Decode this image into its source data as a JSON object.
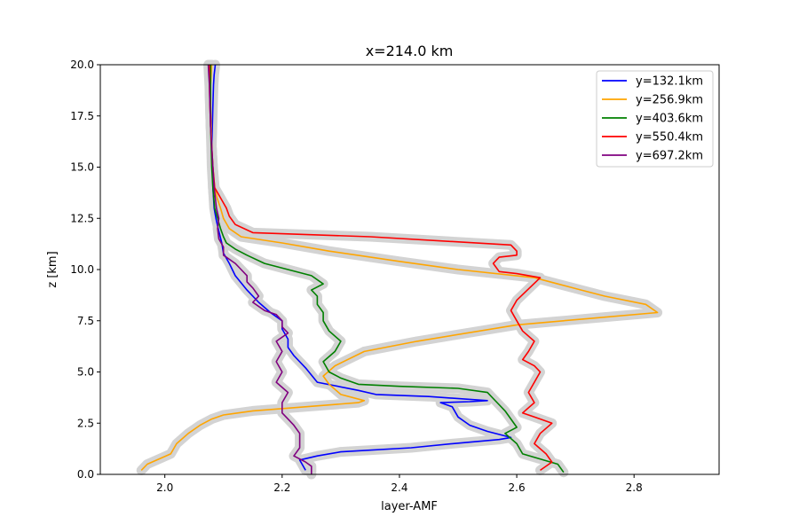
{
  "chart_data": {
    "type": "line",
    "title": "x=214.0 km",
    "xlabel": "layer-AMF",
    "ylabel": "z [km]",
    "xlim": [
      1.89,
      2.945
    ],
    "ylim": [
      0,
      20
    ],
    "xticks": [
      "2.0",
      "2.2",
      "2.4",
      "2.6",
      "2.8"
    ],
    "xtick_values": [
      2.0,
      2.2,
      2.4,
      2.6,
      2.8
    ],
    "yticks": [
      "0.0",
      "2.5",
      "5.0",
      "7.5",
      "10.0",
      "12.5",
      "15.0",
      "17.5",
      "20.0"
    ],
    "ytick_values": [
      0,
      2.5,
      5.0,
      7.5,
      10.0,
      12.5,
      15.0,
      17.5,
      20.0
    ],
    "grid": false,
    "legend_position": "top-right",
    "uncertainty_band_color": "#d3d3d3",
    "series": [
      {
        "name": "y=132.1km",
        "color": "#0000ff",
        "x": [
          2.24,
          2.23,
          2.26,
          2.3,
          2.42,
          2.49,
          2.57,
          2.59,
          2.55,
          2.52,
          2.5,
          2.49,
          2.47,
          2.52,
          2.55,
          2.45,
          2.36,
          2.33,
          2.26,
          2.24,
          2.22,
          2.21,
          2.21,
          2.2,
          2.2,
          2.18,
          2.16,
          2.14,
          2.12,
          2.11,
          2.1,
          2.097,
          2.091,
          2.087,
          2.084,
          2.082,
          2.081,
          2.08,
          2.081,
          2.082,
          2.083,
          2.084,
          2.086
        ],
        "y": [
          0.2,
          0.7,
          0.9,
          1.1,
          1.3,
          1.5,
          1.7,
          1.8,
          2.1,
          2.4,
          2.8,
          3.3,
          3.5,
          3.55,
          3.6,
          3.8,
          3.9,
          4.1,
          4.5,
          5.2,
          5.8,
          6.2,
          6.6,
          7.1,
          7.5,
          7.9,
          8.4,
          9.0,
          9.7,
          10.3,
          10.8,
          11.3,
          12.0,
          12.5,
          13.0,
          14.0,
          15.0,
          16.0,
          17.0,
          18.0,
          19.0,
          19.5,
          20.0
        ]
      },
      {
        "name": "y=256.9km",
        "color": "#ffa500",
        "x": [
          1.96,
          1.97,
          2.01,
          2.02,
          2.04,
          2.06,
          2.08,
          2.1,
          2.15,
          2.33,
          2.34,
          2.3,
          2.28,
          2.27,
          2.29,
          2.34,
          2.43,
          2.6,
          2.72,
          2.84,
          2.82,
          2.75,
          2.71,
          2.67,
          2.63,
          2.5,
          2.4,
          2.28,
          2.2,
          2.13,
          2.11,
          2.1,
          2.095,
          2.089,
          2.085,
          2.082,
          2.08,
          2.079,
          2.078,
          2.078,
          2.079,
          2.08
        ],
        "y": [
          0.2,
          0.5,
          1.0,
          1.5,
          2.0,
          2.4,
          2.7,
          2.9,
          3.1,
          3.5,
          3.6,
          3.9,
          4.4,
          4.8,
          5.3,
          6.0,
          6.5,
          7.3,
          7.6,
          7.9,
          8.3,
          8.7,
          9.0,
          9.3,
          9.6,
          10.0,
          10.4,
          10.9,
          11.3,
          11.6,
          12.0,
          12.5,
          13.0,
          13.5,
          14.0,
          15.0,
          16.0,
          17.0,
          18.0,
          19.0,
          19.5,
          20.0
        ]
      },
      {
        "name": "y=403.6km",
        "color": "#008000",
        "x": [
          2.68,
          2.67,
          2.61,
          2.6,
          2.58,
          2.6,
          2.59,
          2.58,
          2.57,
          2.56,
          2.55,
          2.5,
          2.4,
          2.33,
          2.3,
          2.28,
          2.27,
          2.29,
          2.3,
          2.28,
          2.27,
          2.27,
          2.26,
          2.26,
          2.25,
          2.27,
          2.25,
          2.21,
          2.17,
          2.14,
          2.12,
          2.105,
          2.1,
          2.095,
          2.09,
          2.085,
          2.082,
          2.08,
          2.079,
          2.078,
          2.078,
          2.078,
          2.078
        ],
        "y": [
          0.1,
          0.5,
          1.0,
          1.5,
          2.0,
          2.3,
          2.7,
          3.1,
          3.4,
          3.7,
          4.0,
          4.2,
          4.3,
          4.4,
          4.7,
          5.0,
          5.5,
          6.0,
          6.5,
          7.0,
          7.5,
          7.9,
          8.3,
          8.7,
          9.0,
          9.3,
          9.7,
          10.0,
          10.3,
          10.7,
          11.0,
          11.3,
          11.6,
          12.0,
          12.5,
          13.0,
          14.0,
          15.0,
          16.0,
          17.0,
          18.0,
          19.0,
          20.0
        ]
      },
      {
        "name": "y=550.4km",
        "color": "#ff0000",
        "x": [
          2.64,
          2.66,
          2.65,
          2.63,
          2.64,
          2.66,
          2.63,
          2.61,
          2.63,
          2.62,
          2.63,
          2.64,
          2.63,
          2.61,
          2.62,
          2.63,
          2.61,
          2.6,
          2.59,
          2.6,
          2.64,
          2.6,
          2.57,
          2.56,
          2.57,
          2.6,
          2.6,
          2.59,
          2.35,
          2.15,
          2.12,
          2.11,
          2.105,
          2.095,
          2.085,
          2.082,
          2.08,
          2.078,
          2.077,
          2.076,
          2.076,
          2.076
        ],
        "y": [
          0.2,
          0.6,
          1.0,
          1.5,
          2.0,
          2.5,
          2.8,
          3.0,
          3.5,
          4.0,
          4.5,
          5.0,
          5.3,
          5.6,
          6.0,
          6.5,
          7.0,
          7.5,
          8.0,
          8.5,
          9.6,
          9.8,
          9.9,
          10.3,
          10.6,
          10.7,
          10.9,
          11.2,
          11.6,
          11.8,
          12.2,
          12.6,
          13.0,
          13.5,
          14.0,
          15.0,
          16.0,
          17.0,
          18.0,
          19.0,
          19.5,
          20.0
        ]
      },
      {
        "name": "y=697.2km",
        "color": "#800080",
        "x": [
          2.25,
          2.25,
          2.24,
          2.22,
          2.23,
          2.23,
          2.22,
          2.21,
          2.2,
          2.2,
          2.21,
          2.19,
          2.2,
          2.19,
          2.2,
          2.19,
          2.21,
          2.2,
          2.2,
          2.19,
          2.17,
          2.15,
          2.16,
          2.15,
          2.14,
          2.14,
          2.13,
          2.12,
          2.1,
          2.1,
          2.092,
          2.09,
          2.092,
          2.088,
          2.084,
          2.082,
          2.08,
          2.078,
          2.077,
          2.076,
          2.075,
          2.074
        ],
        "y": [
          0.0,
          0.4,
          0.6,
          0.9,
          1.3,
          2.0,
          2.4,
          2.7,
          3.0,
          3.5,
          4.0,
          4.5,
          5.0,
          5.5,
          6.0,
          6.5,
          6.9,
          7.2,
          7.5,
          7.8,
          8.0,
          8.4,
          8.7,
          9.1,
          9.4,
          9.7,
          10.0,
          10.3,
          10.7,
          11.1,
          11.5,
          12.0,
          12.5,
          13.0,
          14.0,
          15.0,
          16.0,
          17.0,
          18.0,
          19.0,
          19.5,
          20.0
        ]
      }
    ]
  }
}
